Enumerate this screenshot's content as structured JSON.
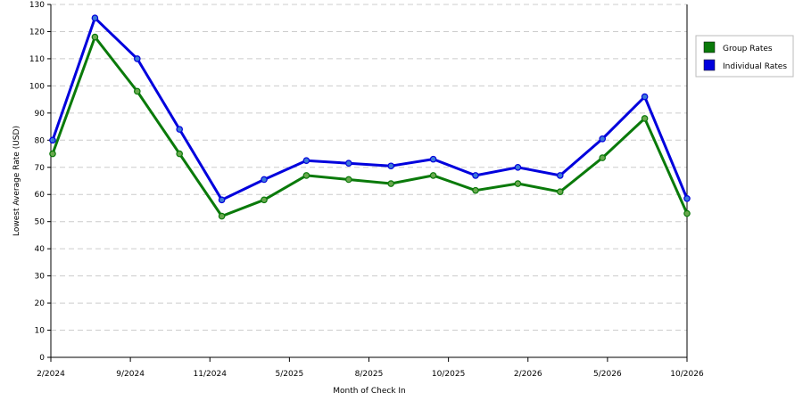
{
  "chart_data": {
    "type": "line",
    "title": "",
    "xlabel": "Month of Check In",
    "ylabel": "Lowest Average Rate (USD)",
    "ylim": [
      0,
      130
    ],
    "ytick_step": 10,
    "grid": "horizontal-dashed",
    "legend_position": "top-right",
    "x_tick_labels": [
      "2/2024",
      "9/2024",
      "11/2024",
      "5/2025",
      "8/2025",
      "10/2025",
      "2/2026",
      "5/2026",
      "10/2026"
    ],
    "series": [
      {
        "name": "Group Rates",
        "color": "#0a7a0a",
        "marker_color": "#6aa84f",
        "values": [
          75,
          118,
          98,
          75,
          52,
          58,
          67,
          65.5,
          64,
          67,
          61.5,
          64,
          61,
          73.5,
          88,
          53
        ]
      },
      {
        "name": "Individual Rates",
        "color": "#0000dd",
        "marker_color": "#3c78d8",
        "values": [
          80,
          125,
          110,
          84,
          58,
          65.5,
          72.5,
          71.5,
          70.5,
          73,
          67,
          70,
          67,
          80.5,
          96,
          58.5
        ]
      }
    ]
  }
}
